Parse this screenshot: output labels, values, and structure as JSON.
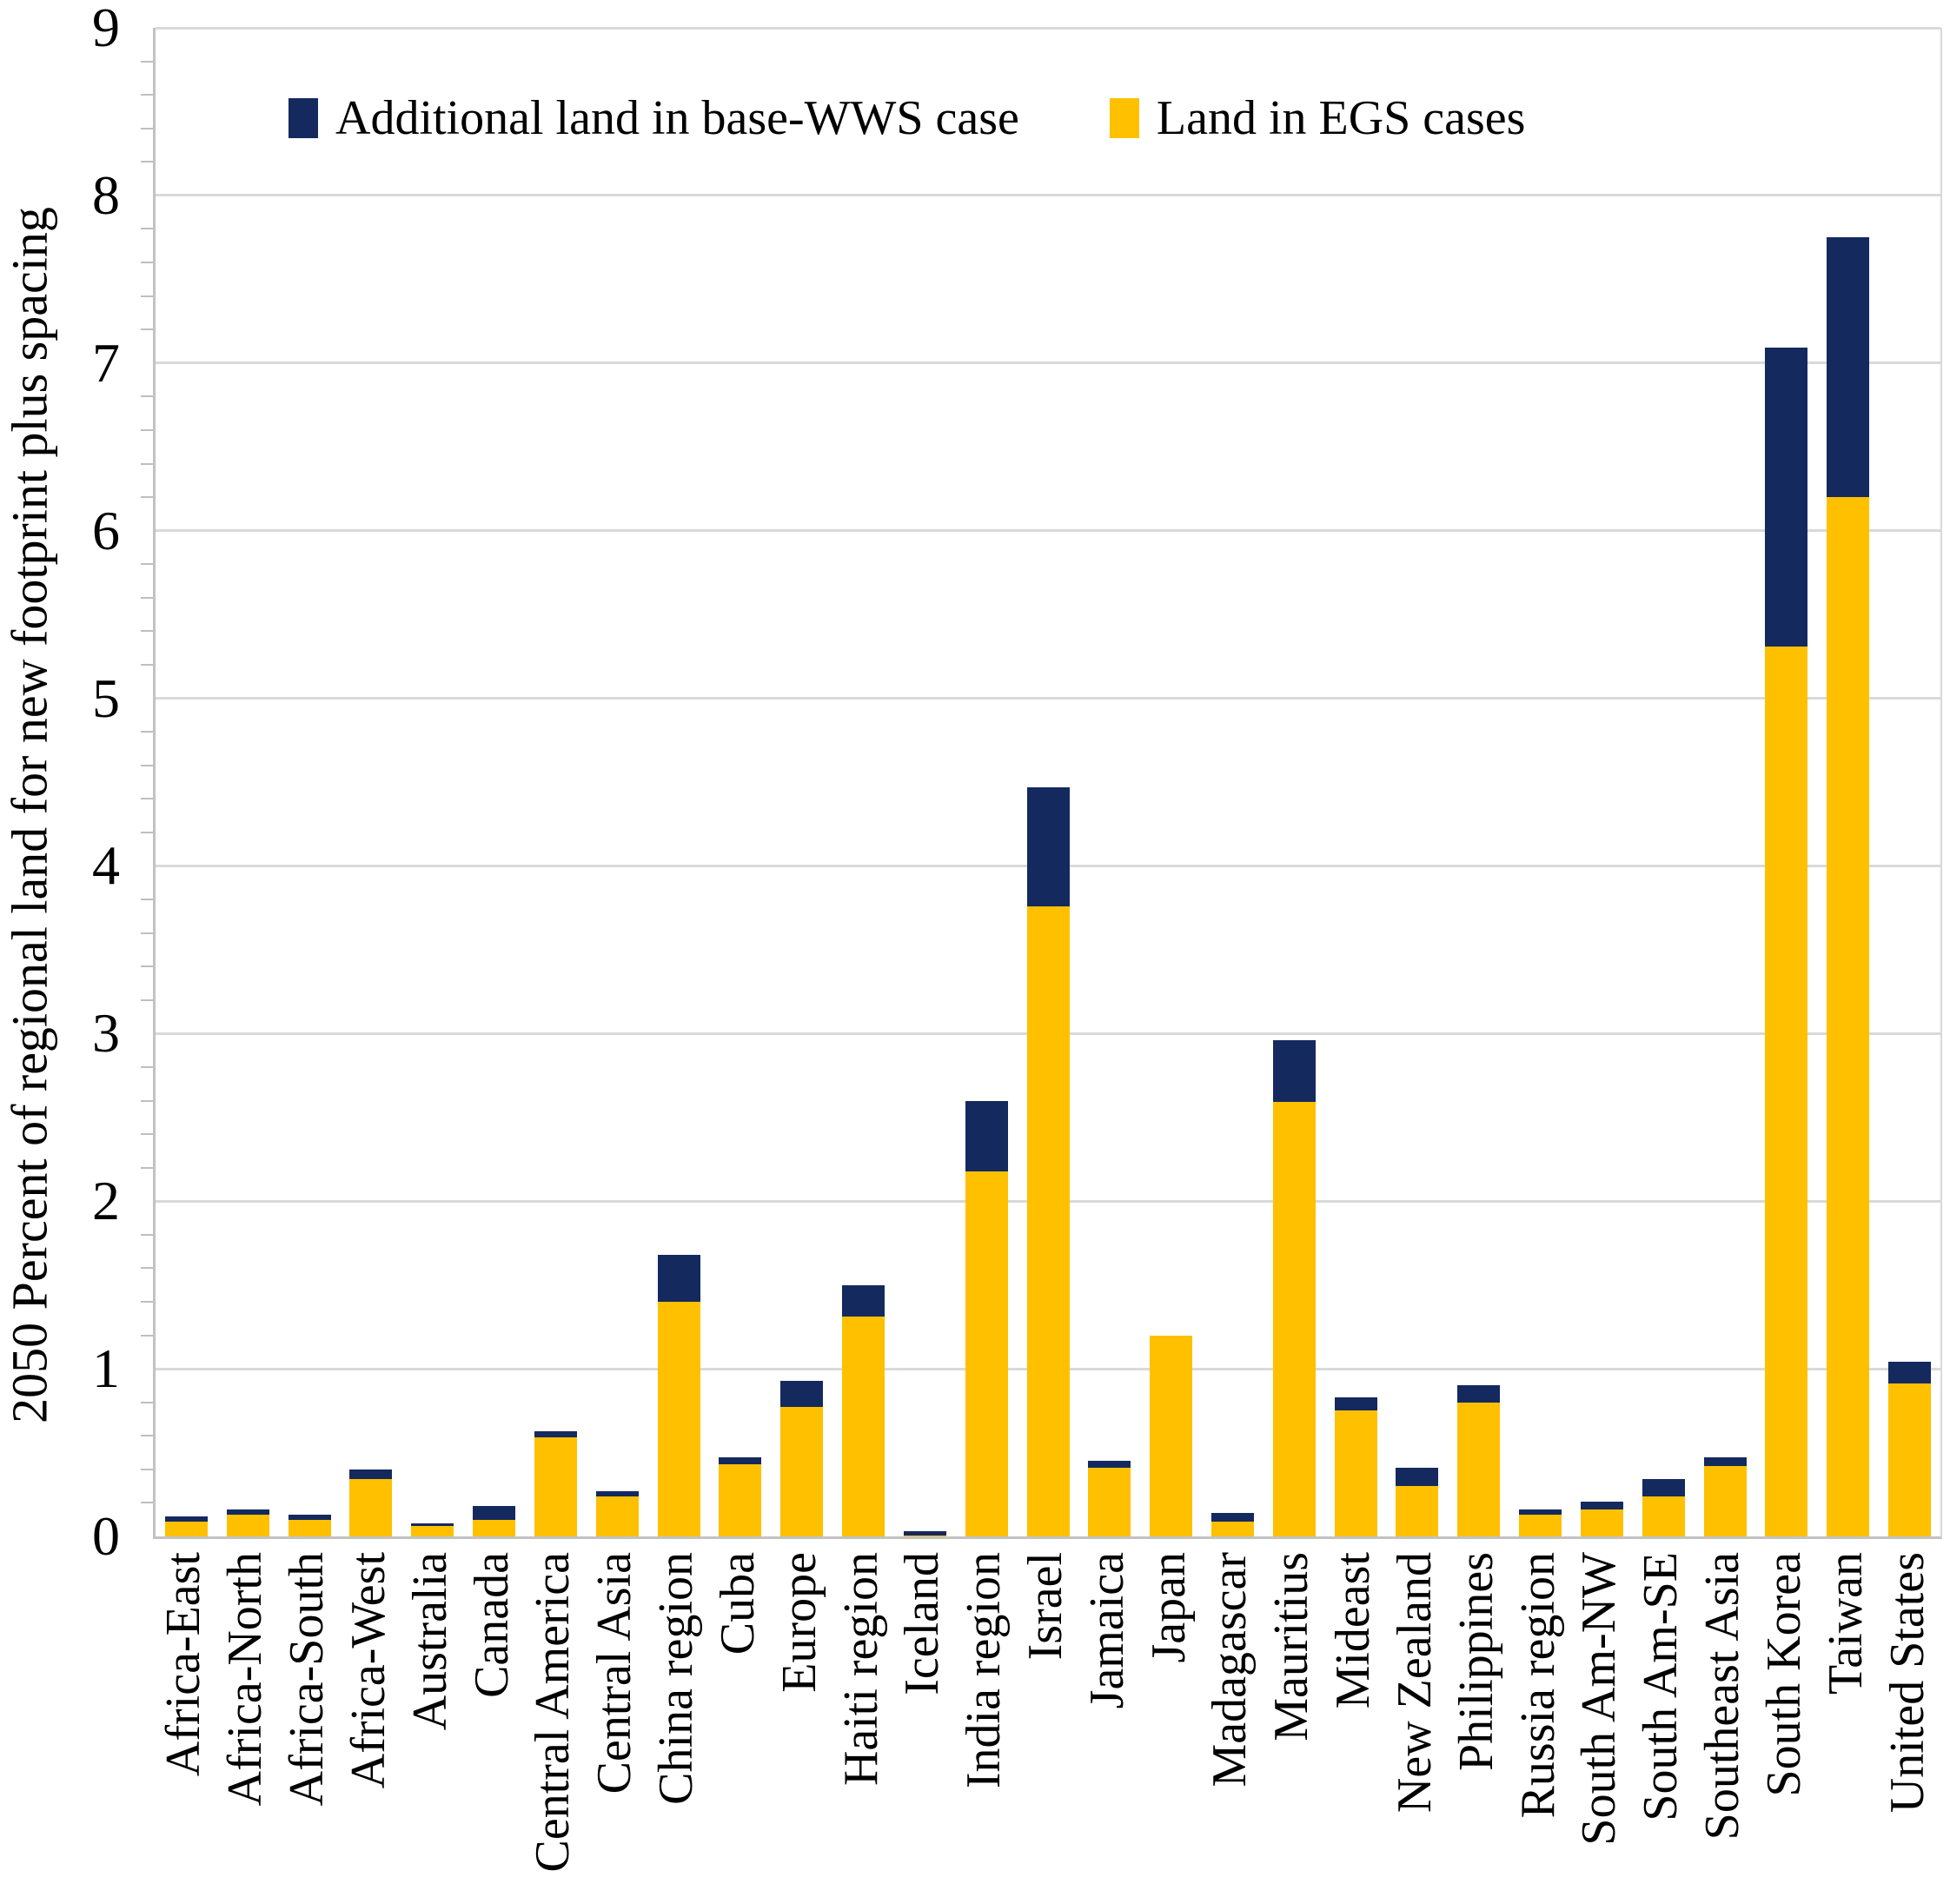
{
  "y_axis": {
    "title": "2050 Percent of regional land for new footprint plus spacing",
    "ticks": [
      "0",
      "1",
      "2",
      "3",
      "4",
      "5",
      "6",
      "7",
      "8",
      "9"
    ]
  },
  "legend": {
    "items": [
      {
        "label": "Additional land in base-WWS case",
        "color": "#14295E"
      },
      {
        "label": "Land in EGS cases",
        "color": "#FFC000"
      }
    ]
  },
  "colors": {
    "egs_yellow": "#FFC000",
    "wws_navy": "#14295E",
    "gridline": "#D9D9D9",
    "axis_line": "#C2C2C2"
  },
  "chart_data": {
    "type": "bar",
    "stacked": true,
    "title": "",
    "xlabel": "",
    "ylabel": "2050 Percent of regional land for new footprint plus spacing",
    "ylim": [
      0,
      9
    ],
    "ytick_step": 1,
    "minor_tick_step": 0.2,
    "grid": true,
    "legend_position": "top-inside",
    "categories": [
      "Africa-East",
      "Africa-North",
      "Africa-South",
      "Africa-West",
      "Australia",
      "Canada",
      "Central America",
      "Central Asia",
      "China region",
      "Cuba",
      "Europe",
      "Haiti region",
      "Iceland",
      "India region",
      "Israel",
      "Jamaica",
      "Japan",
      "Madagascar",
      "Mauritius",
      "Mideast",
      "New Zealand",
      "Philippines",
      "Russia region",
      "South Am-NW",
      "South Am-SE",
      "Southeast Asia",
      "South Korea",
      "Taiwan",
      "United States"
    ],
    "series": [
      {
        "name": "Land in EGS cases",
        "color": "#FFC000",
        "values": [
          0.09,
          0.13,
          0.1,
          0.34,
          0.06,
          0.1,
          0.59,
          0.24,
          1.4,
          0.43,
          0.77,
          1.31,
          0.005,
          2.18,
          3.76,
          0.41,
          1.2,
          0.09,
          2.59,
          0.75,
          0.3,
          0.8,
          0.13,
          0.16,
          0.24,
          0.42,
          5.31,
          6.2,
          0.91
        ]
      },
      {
        "name": "Additional land in base-WWS case",
        "color": "#14295E",
        "values": [
          0.03,
          0.03,
          0.03,
          0.06,
          0.02,
          0.08,
          0.04,
          0.03,
          0.28,
          0.04,
          0.16,
          0.19,
          0.025,
          0.42,
          0.71,
          0.04,
          0.0,
          0.05,
          0.37,
          0.08,
          0.11,
          0.1,
          0.03,
          0.05,
          0.1,
          0.05,
          1.78,
          1.55,
          0.13
        ]
      }
    ],
    "totals": [
      0.12,
      0.16,
      0.13,
      0.4,
      0.08,
      0.18,
      0.63,
      0.27,
      1.68,
      0.47,
      0.93,
      1.5,
      0.03,
      2.6,
      4.47,
      0.45,
      1.2,
      0.14,
      2.96,
      0.83,
      0.41,
      0.9,
      0.16,
      0.21,
      0.34,
      0.47,
      7.09,
      7.75,
      1.04
    ]
  }
}
